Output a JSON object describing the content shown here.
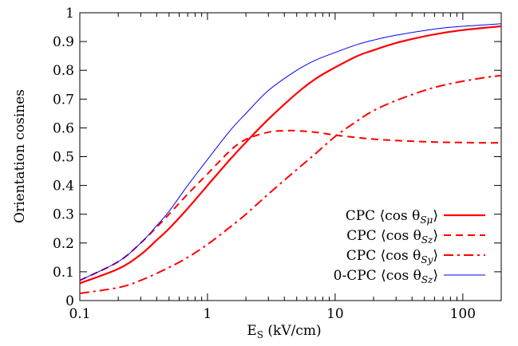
{
  "chart_data": {
    "type": "line",
    "xscale": "log",
    "xlim": [
      0.1,
      200
    ],
    "ylim": [
      0,
      1
    ],
    "x_ticks": [
      0.1,
      1,
      10,
      100
    ],
    "x_tick_labels": [
      "0.1",
      "1",
      "10",
      "100"
    ],
    "y_ticks": [
      0,
      0.1,
      0.2,
      0.3,
      0.4,
      0.5,
      0.6,
      0.7,
      0.8,
      0.9,
      1
    ],
    "y_tick_labels": [
      "0",
      "0.1",
      "0.2",
      "0.3",
      "0.4",
      "0.5",
      "0.6",
      "0.7",
      "0.8",
      "0.9",
      "1"
    ],
    "xlabel": "Eₛ (kV/cm)",
    "xlabel_main": "E",
    "xlabel_sub": "S",
    "xlabel_units": " (kV/cm)",
    "ylabel": "Orientation cosines",
    "grid": false,
    "legend_position": "bottom-right",
    "series": [
      {
        "name": "CPC ⟨cos θSμ⟩",
        "legend_prefix": "CPC ⟨cos θ",
        "legend_sub": "Sμ",
        "legend_suffix": "⟩",
        "color": "#ff0000",
        "style": "solid",
        "x": [
          0.1,
          0.2,
          0.3,
          0.4,
          0.5,
          0.7,
          1,
          1.5,
          2,
          3,
          5,
          7,
          10,
          15,
          20,
          30,
          50,
          70,
          100,
          150,
          200
        ],
        "y": [
          0.06,
          0.11,
          0.16,
          0.21,
          0.25,
          0.32,
          0.4,
          0.49,
          0.55,
          0.63,
          0.72,
          0.77,
          0.81,
          0.85,
          0.87,
          0.895,
          0.918,
          0.93,
          0.94,
          0.948,
          0.953
        ]
      },
      {
        "name": "CPC ⟨cos θSz⟩",
        "legend_prefix": "CPC ⟨cos θ",
        "legend_sub": "Sz",
        "legend_suffix": "⟩",
        "color": "#ff0000",
        "style": "dashed",
        "x": [
          0.1,
          0.2,
          0.3,
          0.4,
          0.5,
          0.7,
          1,
          1.5,
          2,
          3,
          4,
          5,
          7,
          10,
          15,
          20,
          30,
          50,
          70,
          100,
          150,
          200
        ],
        "y": [
          0.07,
          0.135,
          0.2,
          0.255,
          0.3,
          0.37,
          0.44,
          0.52,
          0.56,
          0.585,
          0.59,
          0.59,
          0.585,
          0.575,
          0.566,
          0.561,
          0.556,
          0.552,
          0.55,
          0.549,
          0.548,
          0.548
        ]
      },
      {
        "name": "CPC ⟨cos θSy⟩",
        "legend_prefix": "CPC ⟨cos θ",
        "legend_sub": "Sy",
        "legend_suffix": "⟩",
        "color": "#ff0000",
        "style": "dashdot",
        "x": [
          0.1,
          0.2,
          0.3,
          0.5,
          0.7,
          1,
          1.5,
          2,
          3,
          5,
          7,
          10,
          15,
          20,
          30,
          50,
          70,
          100,
          150,
          200
        ],
        "y": [
          0.025,
          0.045,
          0.07,
          0.115,
          0.15,
          0.195,
          0.255,
          0.3,
          0.37,
          0.455,
          0.51,
          0.57,
          0.625,
          0.66,
          0.695,
          0.73,
          0.748,
          0.762,
          0.775,
          0.782
        ]
      },
      {
        "name": "0-CPC ⟨cos θSz⟩",
        "legend_prefix": "0-CPC ⟨cos θ",
        "legend_sub": "Sz",
        "legend_suffix": "⟩",
        "color": "#0000ff",
        "style": "solid-thin",
        "x": [
          0.1,
          0.2,
          0.3,
          0.4,
          0.5,
          0.7,
          1,
          1.5,
          2,
          3,
          5,
          7,
          10,
          15,
          20,
          30,
          50,
          70,
          100,
          150,
          200
        ],
        "y": [
          0.07,
          0.135,
          0.2,
          0.26,
          0.31,
          0.4,
          0.49,
          0.59,
          0.65,
          0.73,
          0.8,
          0.835,
          0.862,
          0.89,
          0.905,
          0.922,
          0.938,
          0.947,
          0.953,
          0.958,
          0.962
        ]
      }
    ]
  }
}
